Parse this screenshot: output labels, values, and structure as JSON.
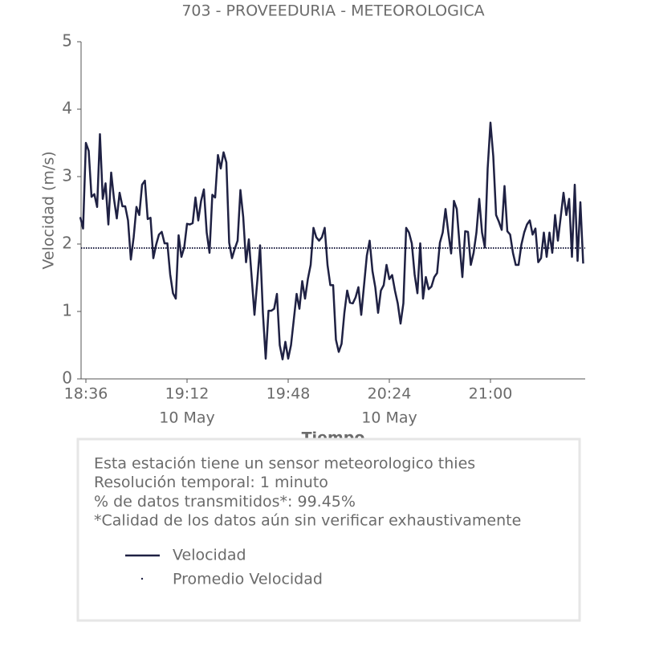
{
  "chart_data": {
    "type": "line",
    "title": "703 - PROVEEDURIA - METEOROLOGICA",
    "xlabel": "Tiempo",
    "ylabel": "Velocidad (m/s)",
    "xlim": [
      "18:34",
      "21:34"
    ],
    "xticks": [
      "18:36",
      "19:12",
      "19:48",
      "20:24",
      "21:00"
    ],
    "xtick_dates": [
      null,
      "10 May",
      null,
      "10 May",
      null
    ],
    "ylim": [
      0,
      5
    ],
    "yticks": [
      0,
      1,
      2,
      3,
      4,
      5
    ],
    "x": [
      "18:34",
      "18:35",
      "18:36",
      "18:37",
      "18:38",
      "18:39",
      "18:40",
      "18:41",
      "18:42",
      "18:43",
      "18:44",
      "18:45",
      "18:46",
      "18:47",
      "18:48",
      "18:49",
      "18:50",
      "18:51",
      "18:52",
      "18:53",
      "18:54",
      "18:55",
      "18:56",
      "18:57",
      "18:58",
      "18:59",
      "19:00",
      "19:01",
      "19:02",
      "19:03",
      "19:04",
      "19:05",
      "19:06",
      "19:07",
      "19:08",
      "19:09",
      "19:10",
      "19:11",
      "19:12",
      "19:13",
      "19:14",
      "19:15",
      "19:16",
      "19:17",
      "19:18",
      "19:19",
      "19:20",
      "19:21",
      "19:22",
      "19:23",
      "19:24",
      "19:25",
      "19:26",
      "19:27",
      "19:28",
      "19:29",
      "19:30",
      "19:31",
      "19:32",
      "19:33",
      "19:34",
      "19:35",
      "19:36",
      "19:37",
      "19:38",
      "19:39",
      "19:40",
      "19:41",
      "19:42",
      "19:43",
      "19:44",
      "19:45",
      "19:46",
      "19:47",
      "19:48",
      "19:49",
      "19:50",
      "19:51",
      "19:52",
      "19:53",
      "19:54",
      "19:55",
      "19:56",
      "19:57",
      "19:58",
      "19:59",
      "20:00",
      "20:01",
      "20:02",
      "20:03",
      "20:04",
      "20:05",
      "20:06",
      "20:07",
      "20:08",
      "20:09",
      "20:10",
      "20:11",
      "20:12",
      "20:13",
      "20:14",
      "20:15",
      "20:16",
      "20:17",
      "20:18",
      "20:19",
      "20:20",
      "20:21",
      "20:22",
      "20:23",
      "20:24",
      "20:25",
      "20:26",
      "20:27",
      "20:28",
      "20:29",
      "20:30",
      "20:31",
      "20:32",
      "20:33",
      "20:34",
      "20:35",
      "20:36",
      "20:37",
      "20:38",
      "20:39",
      "20:40",
      "20:41",
      "20:42",
      "20:43",
      "20:44",
      "20:45",
      "20:46",
      "20:47",
      "20:48",
      "20:49",
      "20:50",
      "20:51",
      "20:52",
      "20:53",
      "20:54",
      "20:55",
      "20:56",
      "20:57",
      "20:58",
      "20:59",
      "21:00",
      "21:01",
      "21:02",
      "21:03",
      "21:04",
      "21:05",
      "21:06",
      "21:07",
      "21:08",
      "21:09",
      "21:10",
      "21:11",
      "21:12",
      "21:13",
      "21:14",
      "21:15",
      "21:16",
      "21:17",
      "21:18",
      "21:19",
      "21:20",
      "21:21",
      "21:22",
      "21:23",
      "21:24",
      "21:25",
      "21:26",
      "21:27",
      "21:28",
      "21:29",
      "21:30",
      "21:31",
      "21:32",
      "21:33"
    ],
    "series": [
      {
        "name": "Velocidad",
        "color": "#1f2143",
        "values": [
          2.4,
          2.23,
          3.5,
          3.38,
          2.7,
          2.74,
          2.55,
          3.63,
          2.67,
          2.9,
          2.29,
          3.06,
          2.67,
          2.38,
          2.76,
          2.56,
          2.56,
          2.35,
          1.77,
          2.1,
          2.55,
          2.43,
          2.88,
          2.94,
          2.37,
          2.39,
          1.79,
          1.99,
          2.14,
          2.18,
          2.01,
          2.01,
          1.55,
          1.27,
          1.19,
          2.13,
          1.81,
          1.95,
          2.3,
          2.29,
          2.31,
          2.69,
          2.35,
          2.64,
          2.81,
          2.17,
          1.87,
          2.73,
          2.69,
          3.32,
          3.12,
          3.36,
          3.21,
          2.02,
          1.79,
          1.93,
          2.05,
          2.8,
          2.4,
          1.73,
          2.07,
          1.51,
          0.95,
          1.45,
          1.98,
          0.98,
          0.3,
          1.01,
          1.01,
          1.04,
          1.26,
          0.5,
          0.29,
          0.55,
          0.3,
          0.5,
          0.88,
          1.26,
          1.04,
          1.45,
          1.19,
          1.48,
          1.69,
          2.24,
          2.1,
          2.05,
          2.1,
          2.24,
          1.69,
          1.39,
          1.39,
          0.58,
          0.4,
          0.52,
          0.98,
          1.31,
          1.13,
          1.12,
          1.21,
          1.36,
          0.95,
          1.39,
          1.83,
          2.05,
          1.6,
          1.36,
          0.98,
          1.31,
          1.39,
          1.69,
          1.48,
          1.54,
          1.31,
          1.12,
          0.82,
          1.12,
          2.24,
          2.17,
          2.01,
          1.55,
          1.27,
          2.01,
          1.19,
          1.51,
          1.33,
          1.37,
          1.51,
          1.57,
          2.02,
          2.17,
          2.52,
          2.17,
          1.86,
          2.64,
          2.52,
          1.99,
          1.51,
          2.19,
          2.18,
          1.69,
          1.87,
          2.17,
          2.67,
          2.17,
          1.95,
          3.12,
          3.8,
          3.3,
          2.43,
          2.33,
          2.21,
          2.86,
          2.19,
          2.14,
          1.87,
          1.69,
          1.69,
          1.99,
          2.17,
          2.29,
          2.35,
          2.14,
          2.23,
          1.73,
          1.79,
          2.17,
          1.81,
          2.17,
          1.87,
          2.43,
          2.05,
          2.4,
          2.76,
          2.43,
          2.67,
          1.81,
          2.88,
          1.75,
          2.62,
          1.71
        ]
      }
    ],
    "average": {
      "name": "Promedio Velocidad",
      "color": "#1f2143",
      "value": 1.94,
      "style": "dotted"
    },
    "notes": [
      "Esta estación tiene un sensor meteorologico thies",
      "Resolución temporal: 1 minuto",
      "% de datos transmitidos*: 99.45%",
      "*Calidad de los datos aún sin verificar exhaustivamente"
    ]
  }
}
